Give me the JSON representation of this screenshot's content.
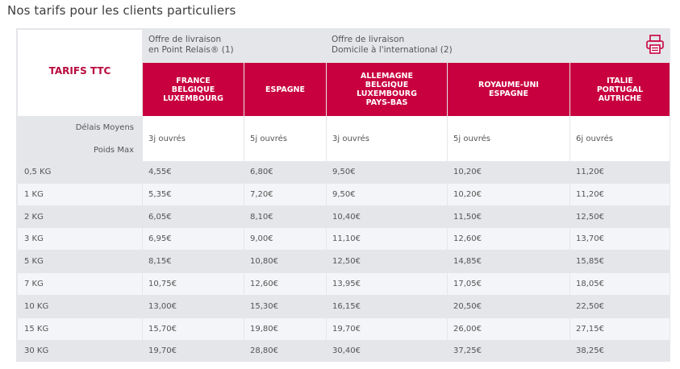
{
  "title": "Nos tarifs pour les clients particuliers",
  "header": {
    "corner_label": "TARIFS TTC",
    "offer_point_relais": [
      "Offre de livraison",
      "en Point Relais® (1)"
    ],
    "offer_domicile": [
      "Offre de livraison",
      "Domicile à l'international (2)"
    ],
    "print_icon": "printer-icon"
  },
  "columns": [
    {
      "lines": [
        "FRANCE",
        "BELGIQUE",
        "LUXEMBOURG"
      ]
    },
    {
      "lines": [
        "ESPAGNE"
      ]
    },
    {
      "lines": [
        "ALLEMAGNE",
        "BELGIQUE",
        "LUXEMBOURG",
        "PAYS-BAS"
      ]
    },
    {
      "lines": [
        "ROYAUME-UNI",
        "ESPAGNE"
      ]
    },
    {
      "lines": [
        "ITALIE",
        "PORTUGAL",
        "AUTRICHE"
      ]
    }
  ],
  "delays": {
    "label": "Délais Moyens",
    "weight_label": "Poids Max",
    "values": [
      "3j ouvrés",
      "5j ouvrés",
      "3j ouvrés",
      "5j ouvrés",
      "6j ouvrés"
    ]
  },
  "rows": [
    {
      "weight": "0,5 KG",
      "prices": [
        "4,55€",
        "6,80€",
        "9,50€",
        "10,20€",
        "11,20€"
      ]
    },
    {
      "weight": "1 KG",
      "prices": [
        "5,35€",
        "7,20€",
        "9,50€",
        "10,20€",
        "11,20€"
      ]
    },
    {
      "weight": "2 KG",
      "prices": [
        "6,05€",
        "8,10€",
        "10,40€",
        "11,50€",
        "12,50€"
      ]
    },
    {
      "weight": "3 KG",
      "prices": [
        "6,95€",
        "9,00€",
        "11,10€",
        "12,60€",
        "13,70€"
      ]
    },
    {
      "weight": "5 KG",
      "prices": [
        "8,15€",
        "10,80€",
        "12,50€",
        "14,85€",
        "15,85€"
      ]
    },
    {
      "weight": "7 KG",
      "prices": [
        "10,75€",
        "12,60€",
        "13,95€",
        "17,05€",
        "18,05€"
      ]
    },
    {
      "weight": "10 KG",
      "prices": [
        "13,00€",
        "15,30€",
        "16,15€",
        "20,50€",
        "22,50€"
      ]
    },
    {
      "weight": "15 KG",
      "prices": [
        "15,70€",
        "19,80€",
        "19,70€",
        "26,00€",
        "27,15€"
      ]
    },
    {
      "weight": "30 KG",
      "prices": [
        "19,70€",
        "28,80€",
        "30,40€",
        "37,25€",
        "38,25€"
      ]
    }
  ],
  "colors": {
    "accent": "#c8003f",
    "corner_text": "#b80b3e",
    "stripe": "#e5e6ea",
    "row_light": "#f4f5f8"
  }
}
